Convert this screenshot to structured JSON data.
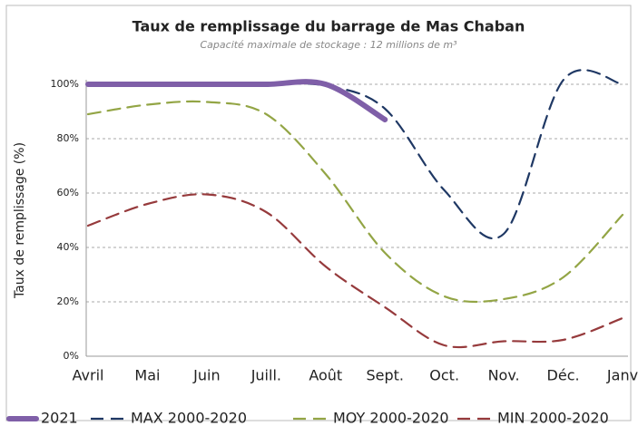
{
  "chart_data": {
    "type": "line",
    "title": "Taux de remplissage du barrage de  Mas Chaban",
    "subtitle": "Capacité maximale de stockage : 12 millions de m³",
    "y_label": "Taux de remplissage (%)",
    "categories": [
      "Avril",
      "Mai",
      "Juin",
      "Juill.",
      "Août",
      "Sept.",
      "Oct.",
      "Nov.",
      "Déc.",
      "Janv"
    ],
    "series": [
      {
        "name": "2021",
        "color": "#7f5fa8",
        "dashed": false,
        "values": [
          100,
          100,
          100,
          100,
          100,
          87,
          null,
          null,
          null,
          null
        ]
      },
      {
        "name": "MAX 2000-2020",
        "color": "#1f3864",
        "dashed": true,
        "values": [
          100,
          100,
          100,
          100,
          99.5,
          91,
          61,
          45,
          101.5,
          100
        ]
      },
      {
        "name": "MOY 2000-2020",
        "color": "#93a545",
        "dashed": true,
        "values": [
          89,
          92.5,
          93.5,
          89,
          67,
          38,
          22,
          21,
          29,
          52
        ]
      },
      {
        "name": "MIN 2000-2020",
        "color": "#963a3c",
        "dashed": true,
        "values": [
          48,
          56,
          59.5,
          53,
          33,
          18,
          4,
          5.5,
          6,
          14
        ]
      }
    ],
    "ylim": [
      0,
      100
    ],
    "yticks": [
      {
        "value": 0,
        "label": "0%"
      },
      {
        "value": 20,
        "label": "20%"
      },
      {
        "value": 40,
        "label": "40%"
      },
      {
        "value": 60,
        "label": "60%"
      },
      {
        "value": 80,
        "label": "80%"
      },
      {
        "value": 100,
        "label": "100%"
      }
    ],
    "grid": true,
    "legend": "bottom"
  }
}
